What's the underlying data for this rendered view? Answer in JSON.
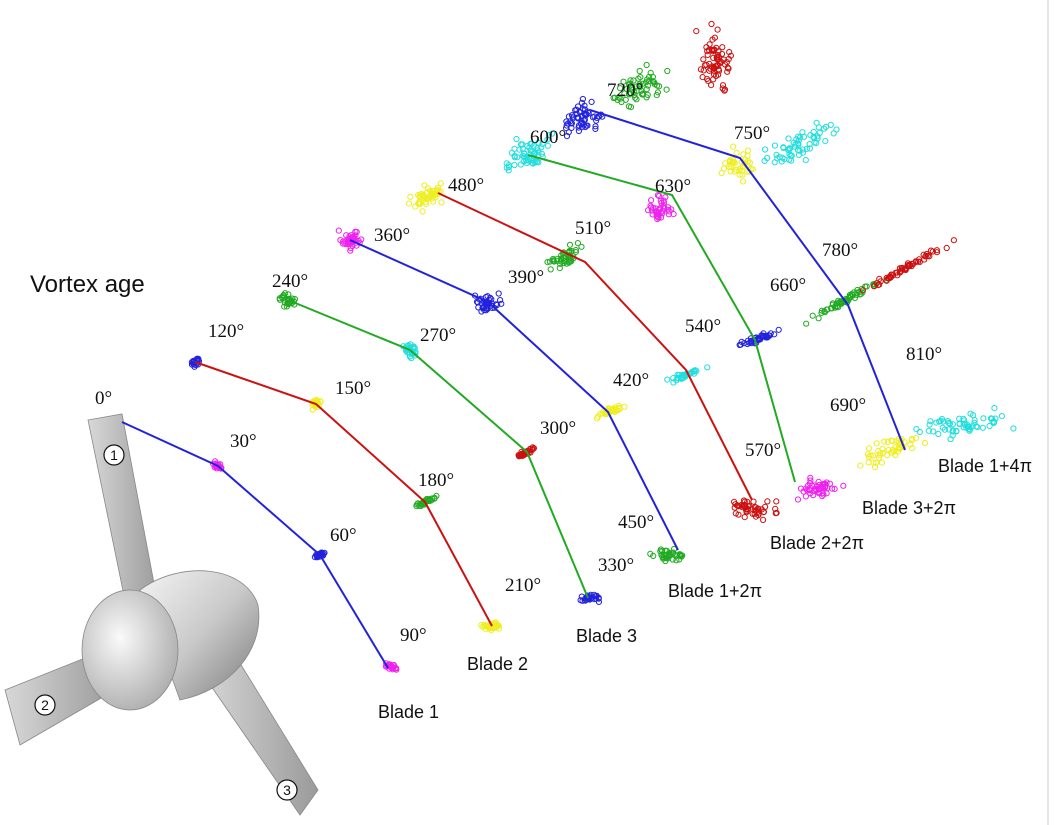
{
  "title": "Vortex age",
  "angles": [
    "0°",
    "30°",
    "60°",
    "90°",
    "120°",
    "150°",
    "180°",
    "210°",
    "240°",
    "270°",
    "300°",
    "330°",
    "360°",
    "390°",
    "420°",
    "450°",
    "480°",
    "510°",
    "540°",
    "570°",
    "600°",
    "630°",
    "660°",
    "690°",
    "720°",
    "750°",
    "780°",
    "810°"
  ],
  "blade_labels": [
    "Blade 1",
    "Blade 2",
    "Blade 3",
    "Blade 1+2π",
    "Blade 2+2π",
    "Blade 3+2π",
    "Blade 1+4π"
  ],
  "blade_numbers": [
    "1",
    "2",
    "3"
  ]
}
